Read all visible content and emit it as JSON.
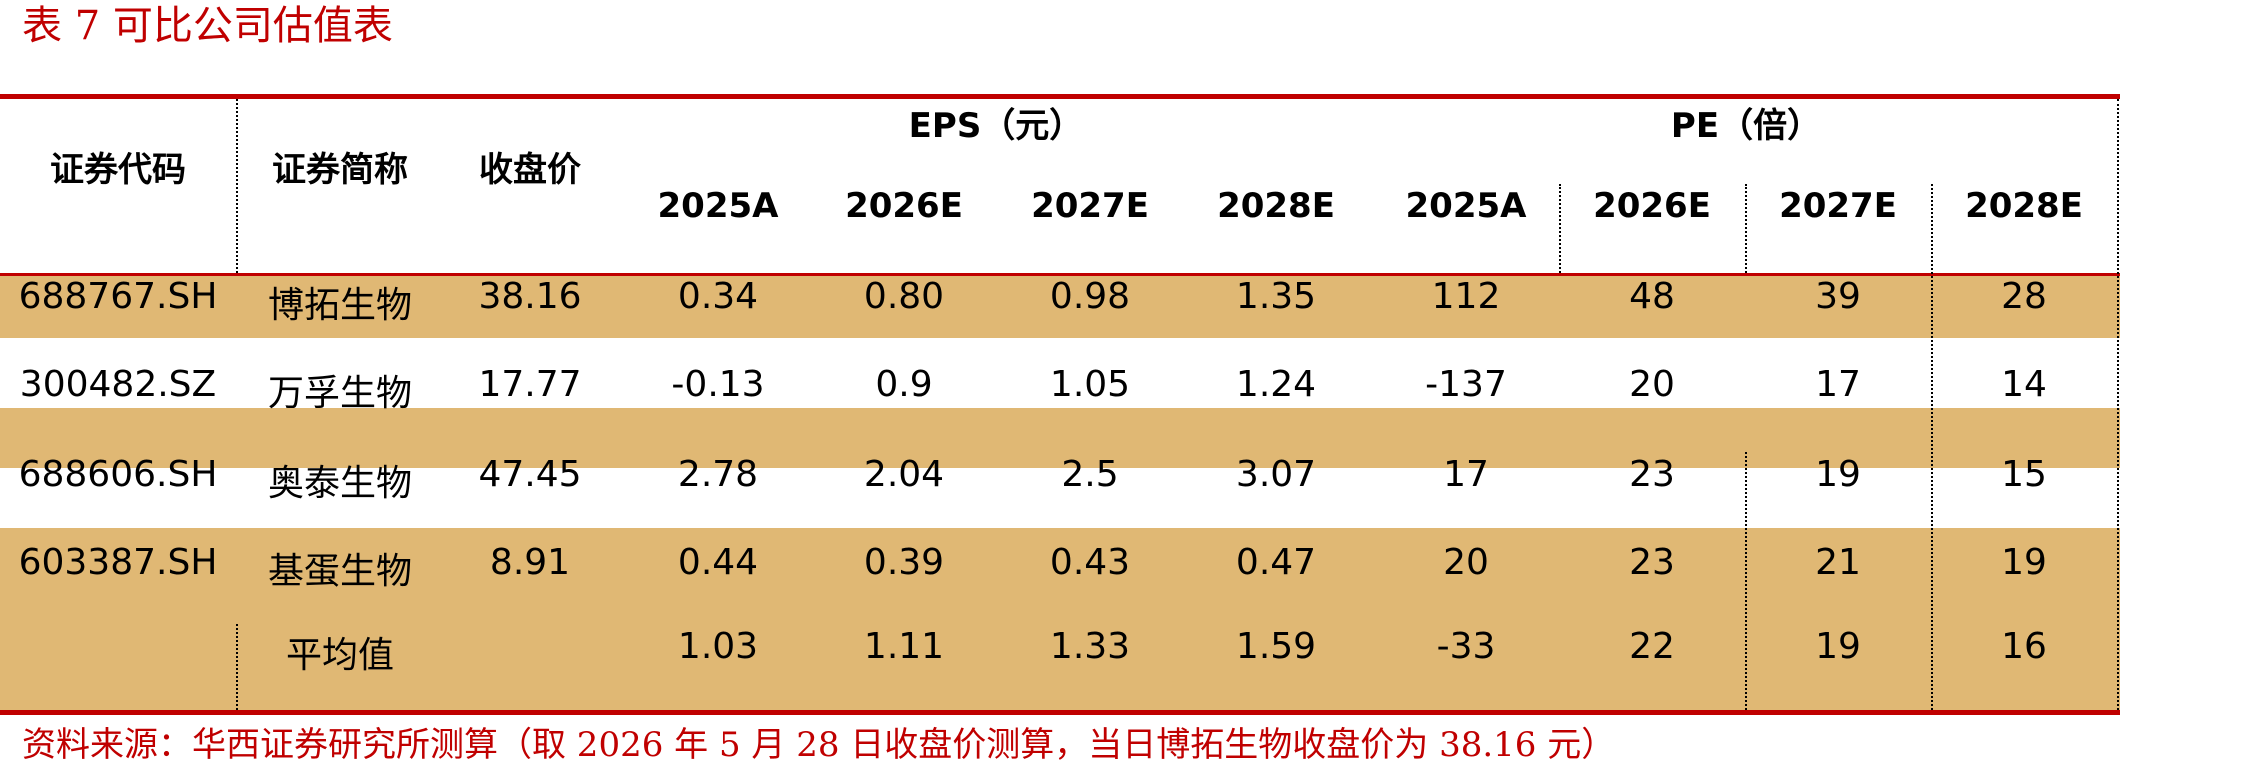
{
  "title": "表 7  可比公司估值表",
  "header": {
    "code": "证券代码",
    "name": "证券简称",
    "close": "收盘价",
    "eps_group": "EPS（元）",
    "pe_group": "PE（倍）",
    "years": [
      "2025A",
      "2026E",
      "2027E",
      "2028E"
    ]
  },
  "rows": [
    {
      "code": "688767.SH",
      "name": "博拓生物",
      "close": "38.16",
      "eps": [
        "0.34",
        "0.80",
        "0.98",
        "1.35"
      ],
      "pe": [
        "112",
        "48",
        "39",
        "28"
      ]
    },
    {
      "code": "300482.SZ",
      "name": "万孚生物",
      "close": "17.77",
      "eps": [
        "-0.13",
        "0.9",
        "1.05",
        "1.24"
      ],
      "pe": [
        "-137",
        "20",
        "17",
        "14"
      ]
    },
    {
      "code": "688606.SH",
      "name": "奥泰生物",
      "close": "47.45",
      "eps": [
        "2.78",
        "2.04",
        "2.5",
        "3.07"
      ],
      "pe": [
        "17",
        "23",
        "19",
        "15"
      ]
    },
    {
      "code": "603387.SH",
      "name": "基蛋生物",
      "close": "8.91",
      "eps": [
        "0.44",
        "0.39",
        "0.43",
        "0.47"
      ],
      "pe": [
        "20",
        "23",
        "21",
        "19"
      ]
    }
  ],
  "average": {
    "label": "平均值",
    "eps": [
      "1.03",
      "1.11",
      "1.33",
      "1.59"
    ],
    "pe": [
      "-33",
      "22",
      "19",
      "16"
    ]
  },
  "source": "资料来源：华西证券研究所测算（取 2026 年 5 月 28 日收盘价测算，当日博拓生物收盘价为 38.16 元）",
  "colors": {
    "accent_red": "#c00000",
    "highlight_band": "#e0b874"
  }
}
